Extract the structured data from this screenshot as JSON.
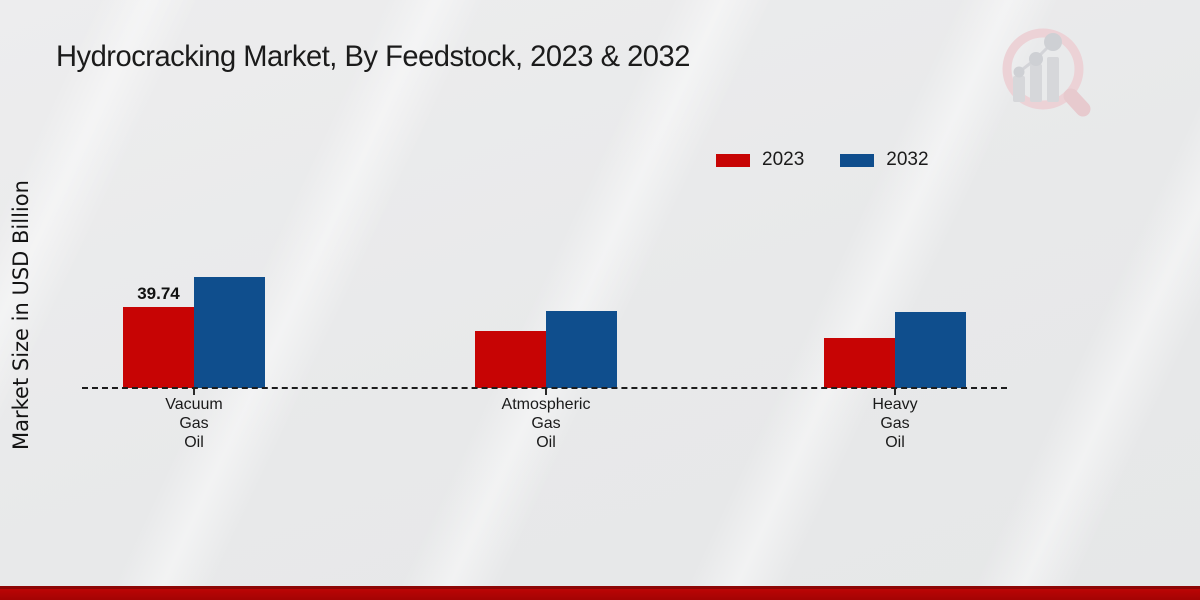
{
  "title": "Hydrocracking Market, By Feedstock, 2023 & 2032",
  "y_axis": {
    "label": "Market Size in USD Billion"
  },
  "footer": {
    "bar_color": "#bb0505"
  },
  "branding": {
    "logo": "magnifier-bar-chart-watermark"
  },
  "chart_data": {
    "type": "bar",
    "categories": [
      "Vacuum Gas Oil",
      "Atmospheric Gas Oil",
      "Heavy Gas Oil"
    ],
    "category_label_lines": [
      [
        "Vacuum",
        "Gas",
        "Oil"
      ],
      [
        "Atmospheric",
        "Gas",
        "Oil"
      ],
      [
        "Heavy",
        "Gas",
        "Oil"
      ]
    ],
    "series": [
      {
        "name": "2023",
        "color": "#c70404",
        "values": [
          39.74,
          28.2,
          24.3
        ]
      },
      {
        "name": "2032",
        "color": "#0f4e8d",
        "values": [
          54.5,
          37.6,
          37.1
        ]
      }
    ],
    "data_labels": [
      {
        "series_index": 0,
        "category_index": 0,
        "text": "39.74"
      }
    ],
    "xlabel": "",
    "ylabel": "Market Size in USD Billion",
    "ylim": [
      0,
      60
    ],
    "grid": false,
    "legend_position": "top-right",
    "baseline_style": "dashed"
  }
}
